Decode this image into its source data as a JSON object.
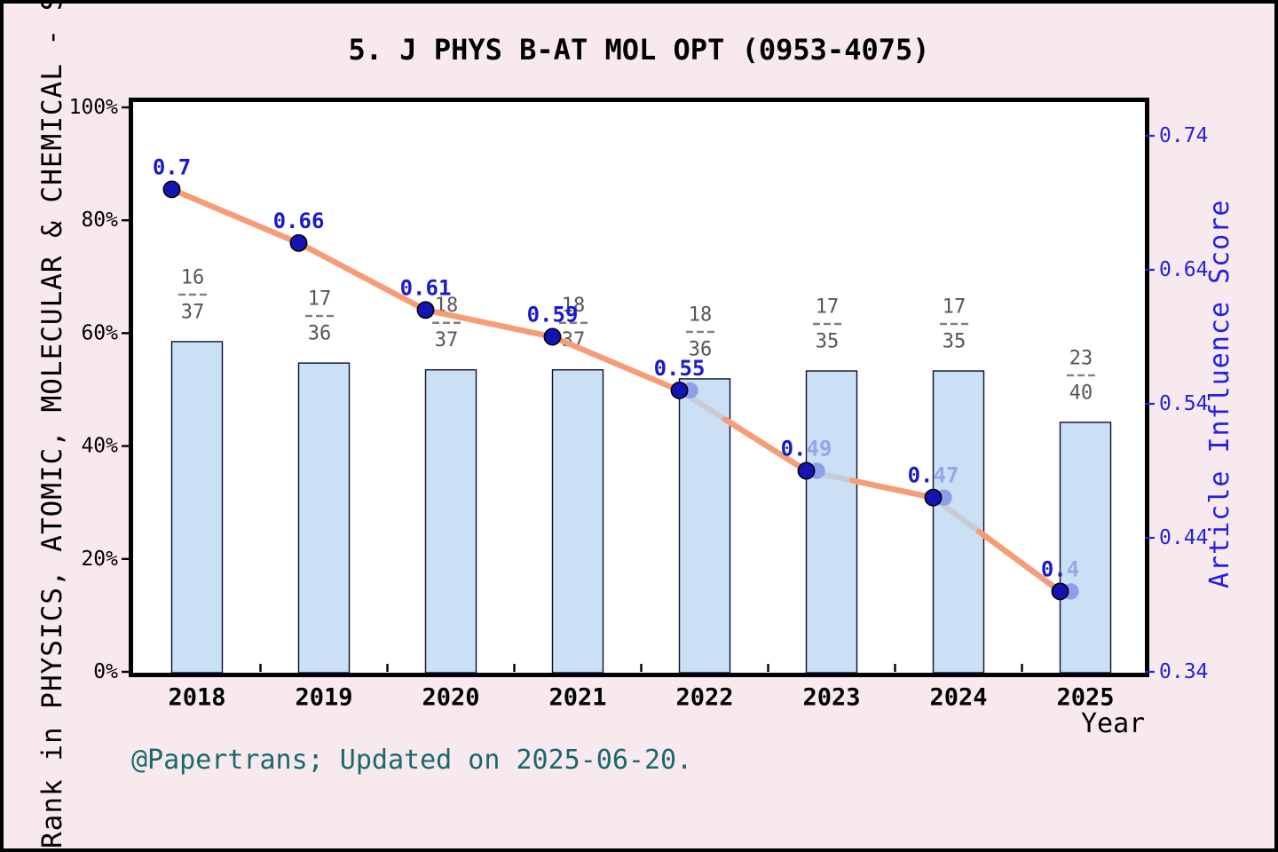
{
  "page": {
    "background_color": "#f8e9ee",
    "frame_color": "#000000",
    "footer": "@Papertrans; Updated on 2025-06-20.",
    "footer_color": "#17696c"
  },
  "chart_data": {
    "type": "combo-bar-line",
    "title": "5. J PHYS B-AT MOL OPT (0953-4075)",
    "xlabel": "Year",
    "categories": [
      "2018",
      "2019",
      "2020",
      "2021",
      "2022",
      "2023",
      "2024",
      "2025"
    ],
    "left_axis": {
      "label": "Rank in PHYSICS, ATOMIC, MOLECULAR & CHEMICAL - SCIE",
      "ticks": [
        "100%",
        "80%",
        "60%",
        "40%",
        "20%",
        "0%"
      ],
      "tick_values": [
        100,
        80,
        60,
        40,
        20,
        0
      ],
      "range": [
        0,
        100
      ],
      "color": "#000000"
    },
    "right_axis": {
      "label": "Article Influence Score",
      "ticks": [
        "0.74",
        "0.64",
        "0.54",
        "0.44",
        "0.34"
      ],
      "tick_values": [
        0.74,
        0.64,
        0.54,
        0.44,
        0.34
      ],
      "range": [
        0.34,
        0.765
      ],
      "color": "#2222e0"
    },
    "bars": {
      "name": "rank-in-category",
      "fractions": [
        "16/37",
        "17/36",
        "18/37",
        "18/37",
        "18/36",
        "17/35",
        "17/35",
        "23/40"
      ],
      "numerators": [
        16,
        17,
        18,
        18,
        18,
        17,
        17,
        23
      ],
      "denominators": [
        37,
        36,
        37,
        37,
        36,
        35,
        35,
        40
      ],
      "percent": [
        58.5,
        54.7,
        53.5,
        53.5,
        51.9,
        53.3,
        53.3,
        44.2
      ],
      "fill": "#c9e0f5",
      "edge": "#0d0d33",
      "fraction_color": "#555555",
      "fraction_dash_color": "#808080"
    },
    "line": {
      "name": "article-influence-score",
      "values": [
        0.7,
        0.66,
        0.61,
        0.59,
        0.55,
        0.49,
        0.47,
        0.4
      ],
      "labels": [
        "0.7",
        "0.66",
        "0.61",
        "0.59",
        "0.55",
        "0.49",
        "0.47",
        "0.4"
      ],
      "color": "#f69c77",
      "secondary_line_color": "#c9ccd4",
      "marker_color": "#1414b2",
      "marker_edge_color": "#000000",
      "secondary_marker_color": "#8e9ee9",
      "label_color": "#1a1acc",
      "secondary_label_color": "#97a5ec",
      "secondary_from_index": 4,
      "two_tone_label_from_index": 5
    },
    "legend": null,
    "grid": false
  }
}
